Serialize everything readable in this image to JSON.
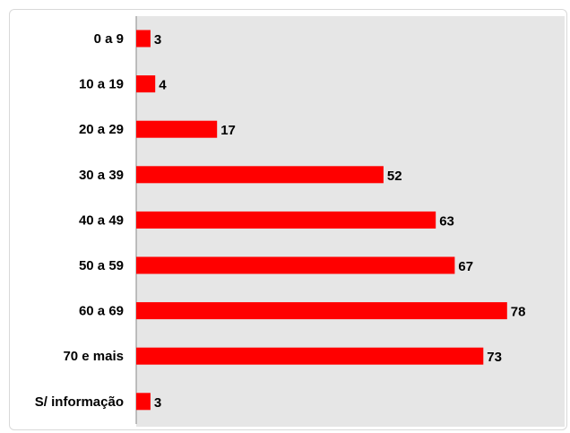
{
  "chart_data": {
    "type": "bar",
    "orientation": "horizontal",
    "categories": [
      "0 a 9",
      "10 a 19",
      "20 a 29",
      "30 a 39",
      "40 a 49",
      "50 a 59",
      "60 a 69",
      "70 e mais",
      "S/ informação"
    ],
    "values": [
      3,
      4,
      17,
      52,
      63,
      67,
      78,
      73,
      3
    ],
    "title": "",
    "xlabel": "",
    "ylabel": "",
    "xlim": [
      0,
      80
    ],
    "grid": false,
    "legend": "none",
    "colors": {
      "bar": "#ff0000",
      "plot_background": "#e6e6e6",
      "axis": "#888888",
      "text": "#000000"
    }
  }
}
